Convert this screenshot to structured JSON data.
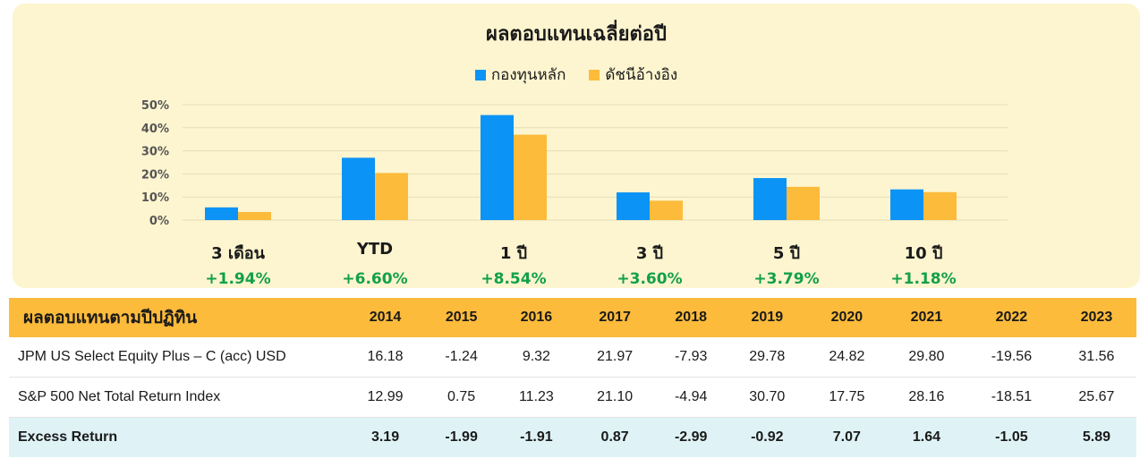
{
  "chart_data": {
    "type": "bar",
    "title": "ผลตอบแทนเฉลี่ยต่อปี",
    "categories": [
      "3 เดือน",
      "YTD",
      "1 ปี",
      "3 ปี",
      "5 ปี",
      "10 ปี"
    ],
    "series": [
      {
        "name": "กองทุนหลัก",
        "color": "#0b93f6",
        "values": [
          5.5,
          27.0,
          45.5,
          12.0,
          18.2,
          13.3
        ]
      },
      {
        "name": "ดัชนีอ้างอิง",
        "color": "#fdbb3b",
        "values": [
          3.5,
          20.4,
          37.0,
          8.4,
          14.4,
          12.1
        ]
      }
    ],
    "yticks": [
      "0%",
      "10%",
      "20%",
      "30%",
      "40%",
      "50%"
    ],
    "ylim": [
      0,
      50
    ],
    "grid": true,
    "legend_position": "top-center",
    "excess_returns": [
      "+1.94%",
      "+6.60%",
      "+8.54%",
      "+3.60%",
      "+3.79%",
      "+1.18%"
    ]
  },
  "table": {
    "title": "ผลตอบแทนตามปีปฏิทิน",
    "years": [
      "2014",
      "2015",
      "2016",
      "2017",
      "2018",
      "2019",
      "2020",
      "2021",
      "2022",
      "2023"
    ],
    "rows": [
      {
        "label": "JPM US Select Equity Plus – C (acc) USD",
        "values": [
          "16.18",
          "-1.24",
          "9.32",
          "21.97",
          "-7.93",
          "29.78",
          "24.82",
          "29.80",
          "-19.56",
          "31.56"
        ]
      },
      {
        "label": "S&P 500 Net Total Return Index",
        "values": [
          "12.99",
          "0.75",
          "11.23",
          "21.10",
          "-4.94",
          "30.70",
          "17.75",
          "28.16",
          "-18.51",
          "25.67"
        ]
      },
      {
        "label": "Excess Return",
        "values": [
          "3.19",
          "-1.99",
          "-1.91",
          "0.87",
          "-2.99",
          "-0.92",
          "7.07",
          "1.64",
          "-1.05",
          "5.89"
        ]
      }
    ]
  }
}
